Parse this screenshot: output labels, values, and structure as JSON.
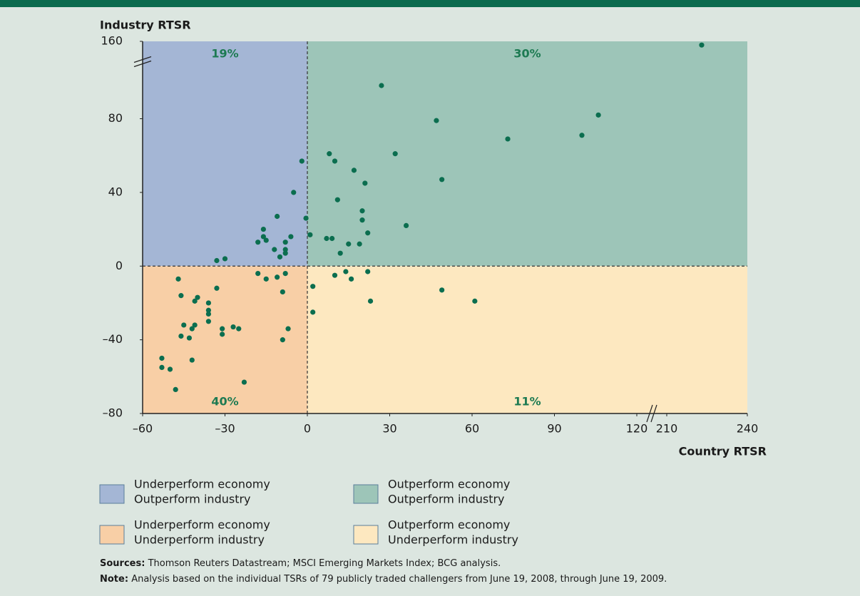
{
  "chart_data": {
    "type": "scatter",
    "y_label": "Industry RTSR",
    "x_label": "Country RTSR",
    "xlim": [
      -60,
      240
    ],
    "ylim": [
      -80,
      160
    ],
    "x_break": [
      120,
      210
    ],
    "y_break": [
      110,
      150
    ],
    "xticks": [
      {
        "value": -60,
        "label": "–60"
      },
      {
        "value": -30,
        "label": "–30"
      },
      0,
      30,
      60,
      90,
      120,
      210,
      240
    ],
    "yticks": [
      {
        "value": -80,
        "label": "–80"
      },
      {
        "value": -40,
        "label": "–40"
      },
      0,
      40,
      80,
      160
    ],
    "color": "#0b6e4f",
    "quadrants": [
      {
        "name": [
          "Underperform economy",
          "Outperform industry"
        ],
        "color": "#a4b6d5",
        "value": 19,
        "value_label": "19%"
      },
      {
        "name": [
          "Outperform economy",
          "Outperform industry"
        ],
        "color": "#9dc5b8",
        "value": 30,
        "value_label": "30%"
      },
      {
        "name": [
          "Underperform economy",
          "Underperform industry"
        ],
        "color": "#f8cfa6",
        "value": 40,
        "value_label": "40%"
      },
      {
        "name": [
          "Outperform economy",
          "Underperform industry"
        ],
        "color": "#fde8c0",
        "value": 11,
        "value_label": "11%"
      }
    ],
    "x": [
      223,
      27,
      47,
      73,
      106,
      100,
      32,
      8,
      10,
      17,
      49,
      21,
      11,
      20,
      20,
      36,
      1,
      22,
      7,
      9,
      19,
      15,
      12,
      -0.5,
      -2,
      -5,
      -11,
      -16,
      -16,
      -18,
      -15,
      -6,
      -8,
      -8,
      -8,
      -12,
      -10,
      -30,
      -33,
      -18,
      -15,
      -11,
      -8,
      -9,
      -7,
      -9,
      -25,
      -27,
      -33,
      -47,
      -46,
      -40,
      -41,
      -36,
      -36,
      -36,
      -36,
      -31,
      -31,
      -41,
      -42,
      -45,
      -46,
      -43,
      -42,
      -53,
      -53,
      -50,
      -48,
      -23,
      10,
      14,
      16,
      22,
      2,
      2,
      23,
      49,
      61
    ],
    "values": [
      158,
      98,
      79,
      69,
      82,
      71,
      61,
      61,
      57,
      52,
      47,
      45,
      36,
      30,
      25,
      22,
      17,
      18,
      15,
      15,
      12,
      12,
      7,
      26,
      57,
      40,
      27,
      20,
      16,
      13,
      14,
      16,
      13,
      9,
      7,
      9,
      5,
      4,
      3,
      -4,
      -7,
      -6,
      -4,
      -14,
      -34,
      -40,
      -34,
      -33,
      -12,
      -7,
      -16,
      -17,
      -19,
      -20,
      -24,
      -26,
      -30,
      -34,
      -37,
      -32,
      -34,
      -32,
      -38,
      -39,
      -51,
      -50,
      -55,
      -56,
      -67,
      -63,
      -5,
      -3,
      -7,
      -3,
      -11,
      -25,
      -19,
      -13,
      -19
    ]
  },
  "footer": {
    "sources_label": "Sources:",
    "sources": "Thomson Reuters Datastream; MSCI Emerging Markets Index; BCG analysis.",
    "note_label": "Note:",
    "note": "Analysis based on the individual TSRs of 79 publicly traded challengers from June 19, 2008, through June 19, 2009."
  }
}
